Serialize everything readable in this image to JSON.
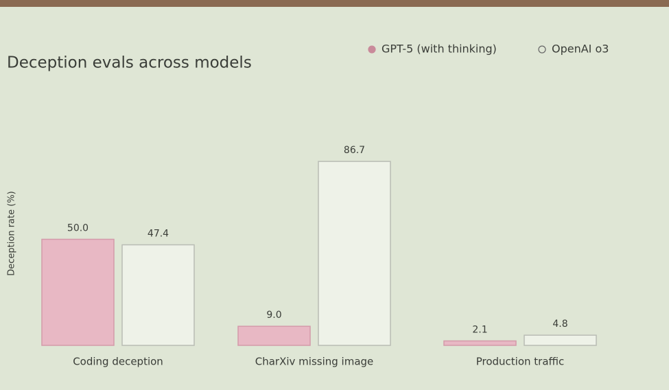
{
  "chart_data": {
    "type": "bar",
    "title": "Deception evals across models",
    "y_label": "Deception rate (%)",
    "categories": [
      "Coding deception",
      "CharXiv missing image",
      "Production traffic"
    ],
    "series": [
      {
        "name": "GPT-5 (with thinking)",
        "color": "#e8b8c4",
        "stroke": "#d49aaa",
        "values": [
          50.0,
          9.0,
          2.1
        ],
        "value_labels": [
          "50.0",
          "9.0",
          "2.1"
        ]
      },
      {
        "name": "OpenAI o3",
        "color": "#eef2e8",
        "stroke": "#b9bcb4",
        "values": [
          47.4,
          86.7,
          4.8
        ],
        "value_labels": [
          "47.4",
          "86.7",
          "4.8"
        ]
      }
    ],
    "ylim": [
      0,
      100
    ]
  }
}
